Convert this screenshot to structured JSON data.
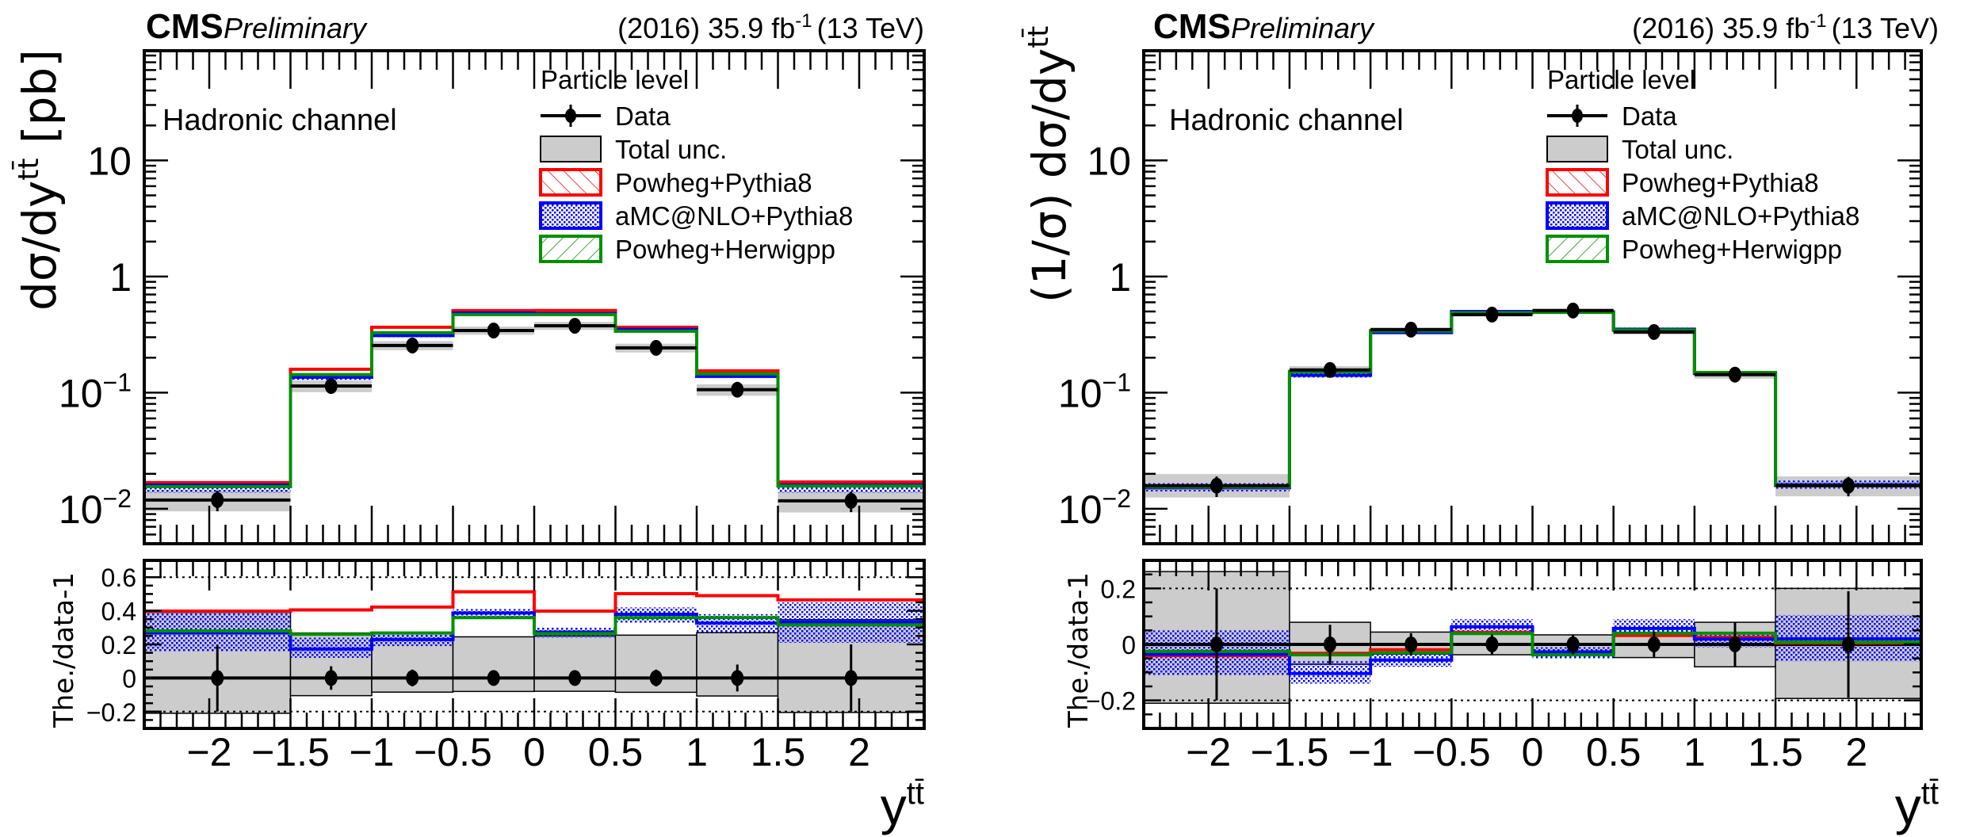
{
  "header": {
    "experiment": "CMS",
    "status": "Preliminary",
    "lumi": "(2016) 35.9 fb",
    "lumi_sup": "-1",
    "energy": "(13 TeV)"
  },
  "legend": {
    "title": "Particle level",
    "entries": [
      {
        "key": "data",
        "label": "Data",
        "color": "#000000"
      },
      {
        "key": "unc",
        "label": "Total unc.",
        "color": "#cccccc"
      },
      {
        "key": "pp8",
        "label": "Powheg+Pythia8",
        "color": "#ff0000"
      },
      {
        "key": "amc",
        "label": "aMC@NLO+Pythia8",
        "color": "#0000ff"
      },
      {
        "key": "phw",
        "label": "Powheg+Herwigpp",
        "color": "#009000"
      }
    ]
  },
  "chart_data": [
    {
      "type": "line",
      "title": "CMS Preliminary (2016) 35.9 fb-1 (13 TeV)",
      "annotation": "Hadronic channel",
      "ylabel": "dσ/dy",
      "ylabel_sup": "tt̄",
      "ylabel_unit": " [pb]",
      "xlabel": "y",
      "xlabel_sup": "tt̄",
      "yscale": "log",
      "ylim": [
        0.005,
        88
      ],
      "xlim": [
        -2.4,
        2.4
      ],
      "yticks": [
        {
          "v": 0.01,
          "base": "10",
          "exp": "−2"
        },
        {
          "v": 0.1,
          "base": "10",
          "exp": "−1"
        },
        {
          "v": 1,
          "base": "1",
          "exp": ""
        },
        {
          "v": 10,
          "base": "10",
          "exp": ""
        }
      ],
      "bin_edges": [
        -2.4,
        -1.5,
        -1.0,
        -0.5,
        0.0,
        0.5,
        1.0,
        1.5,
        2.4
      ],
      "data": [
        0.0119,
        0.114,
        0.255,
        0.343,
        0.377,
        0.243,
        0.106,
        0.0117
      ],
      "data_err_rel": [
        0.2,
        0.07,
        0.05,
        0.04,
        0.03,
        0.05,
        0.08,
        0.2
      ],
      "unc_low": [
        0.0095,
        0.101,
        0.232,
        0.315,
        0.347,
        0.222,
        0.094,
        0.0093
      ],
      "unc_high": [
        0.0145,
        0.127,
        0.278,
        0.371,
        0.407,
        0.264,
        0.118,
        0.0141
      ],
      "series": [
        {
          "name": "Powheg+Pythia8",
          "key": "pp8",
          "values": [
            0.0168,
            0.159,
            0.366,
            0.509,
            0.51,
            0.366,
            0.154,
            0.017
          ]
        },
        {
          "name": "aMC@NLO+Pythia8",
          "key": "amc",
          "values": [
            0.016,
            0.136,
            0.31,
            0.485,
            0.48,
            0.35,
            0.138,
            0.016
          ],
          "band_low": [
            0.0138,
            0.129,
            0.3,
            0.475,
            0.47,
            0.345,
            0.134,
            0.0138
          ],
          "band_high": [
            0.0163,
            0.138,
            0.316,
            0.492,
            0.486,
            0.355,
            0.141,
            0.0165
          ]
        },
        {
          "name": "Powheg+Herwigpp",
          "key": "phw",
          "values": [
            0.0155,
            0.143,
            0.328,
            0.47,
            0.47,
            0.338,
            0.145,
            0.0157
          ]
        }
      ],
      "ratio": {
        "ylabel": "The./data-1",
        "ylim": [
          -0.3,
          0.7
        ],
        "yticks": [
          -0.2,
          0,
          0.2,
          0.4,
          0.6
        ],
        "ytick_labels": [
          "−0.2",
          "0",
          "0.2",
          "0.4",
          "0.6"
        ],
        "dotted_lines": [
          -0.2,
          0.6
        ],
        "data_err": [
          0.2,
          0.07,
          0.05,
          0.04,
          0.03,
          0.05,
          0.08,
          0.2
        ],
        "unc_low": [
          -0.21,
          -0.105,
          -0.084,
          -0.08,
          -0.079,
          -0.085,
          -0.107,
          -0.205
        ],
        "unc_high": [
          0.39,
          0.268,
          0.268,
          0.245,
          0.25,
          0.255,
          0.27,
          0.347
        ],
        "series": [
          {
            "key": "pp8",
            "values": [
              0.398,
              0.405,
              0.422,
              0.513,
              0.398,
              0.502,
              0.49,
              0.465
            ]
          },
          {
            "key": "amc",
            "values": [
              0.268,
              0.172,
              0.229,
              0.387,
              0.273,
              0.379,
              0.327,
              0.333
            ],
            "band_low": [
              0.16,
              0.12,
              0.19,
              0.36,
              0.24,
              0.33,
              0.27,
              0.21
            ],
            "band_high": [
              0.39,
              0.24,
              0.26,
              0.41,
              0.3,
              0.42,
              0.38,
              0.45
            ]
          },
          {
            "key": "phw",
            "values": [
              0.28,
              0.26,
              0.268,
              0.359,
              0.264,
              0.359,
              0.359,
              0.316
            ]
          }
        ]
      },
      "xticks": [
        -2,
        -1.5,
        -1,
        -0.5,
        0,
        0.5,
        1,
        1.5,
        2
      ],
      "xtick_labels": [
        "−2",
        "−1.5",
        "−1",
        "−0.5",
        "0",
        "0.5",
        "1",
        "1.5",
        "2"
      ]
    },
    {
      "type": "line",
      "title": "CMS Preliminary (2016) 35.9 fb-1 (13 TeV)",
      "annotation": "Hadronic channel",
      "ylabel": "(1/σ) dσ/dy",
      "ylabel_sup": "tt̄",
      "ylabel_unit": "",
      "xlabel": "y",
      "xlabel_sup": "tt̄",
      "yscale": "log",
      "ylim": [
        0.005,
        88
      ],
      "xlim": [
        -2.4,
        2.4
      ],
      "yticks": [
        {
          "v": 0.01,
          "base": "10",
          "exp": "−2"
        },
        {
          "v": 0.1,
          "base": "10",
          "exp": "−1"
        },
        {
          "v": 1,
          "base": "1",
          "exp": ""
        },
        {
          "v": 10,
          "base": "10",
          "exp": ""
        }
      ],
      "bin_edges": [
        -2.4,
        -1.5,
        -1.0,
        -0.5,
        0.0,
        0.5,
        1.0,
        1.5,
        2.4
      ],
      "data": [
        0.0158,
        0.157,
        0.349,
        0.47,
        0.51,
        0.333,
        0.143,
        0.0158
      ],
      "data_err_rel": [
        0.2,
        0.07,
        0.04,
        0.035,
        0.035,
        0.045,
        0.08,
        0.19
      ],
      "unc_low": [
        0.0125,
        0.146,
        0.337,
        0.453,
        0.491,
        0.317,
        0.132,
        0.0128
      ],
      "unc_high": [
        0.0199,
        0.169,
        0.364,
        0.491,
        0.527,
        0.345,
        0.154,
        0.019
      ],
      "series": [
        {
          "name": "Powheg+Pythia8",
          "key": "pp8",
          "values": [
            0.0152,
            0.152,
            0.342,
            0.49,
            0.492,
            0.344,
            0.147,
            0.0159
          ]
        },
        {
          "name": "aMC@NLO+Pythia8",
          "key": "amc",
          "values": [
            0.0152,
            0.141,
            0.329,
            0.5,
            0.496,
            0.352,
            0.146,
            0.0161
          ],
          "band_low": [
            0.0141,
            0.135,
            0.321,
            0.489,
            0.485,
            0.347,
            0.142,
            0.0149
          ],
          "band_high": [
            0.0166,
            0.148,
            0.338,
            0.512,
            0.505,
            0.363,
            0.149,
            0.0175
          ]
        },
        {
          "name": "Powheg+Herwigpp",
          "key": "phw",
          "values": [
            0.0154,
            0.151,
            0.339,
            0.488,
            0.491,
            0.346,
            0.149,
            0.0159
          ]
        }
      ],
      "ratio": {
        "ylabel": "The./data-1",
        "ylim": [
          -0.3,
          0.3
        ],
        "yticks": [
          -0.2,
          0,
          0.2
        ],
        "ytick_labels": [
          "−0.2",
          "0",
          "0.2"
        ],
        "dotted_lines": [
          -0.2,
          0.2
        ],
        "data_err": [
          0.2,
          0.07,
          0.04,
          0.035,
          0.035,
          0.045,
          0.08,
          0.19
        ],
        "unc_low": [
          -0.21,
          -0.071,
          -0.035,
          -0.037,
          -0.037,
          -0.047,
          -0.08,
          -0.193
        ],
        "unc_high": [
          0.26,
          0.079,
          0.044,
          0.044,
          0.034,
          0.036,
          0.079,
          0.2
        ],
        "series": [
          {
            "key": "pp8",
            "values": [
              -0.04,
              -0.032,
              -0.019,
              0.043,
              -0.035,
              0.032,
              0.026,
              0.005
            ]
          },
          {
            "key": "amc",
            "values": [
              -0.035,
              -0.104,
              -0.056,
              0.063,
              -0.027,
              0.057,
              0.019,
              0.02
            ],
            "band_low": [
              -0.11,
              -0.14,
              -0.08,
              0.04,
              -0.05,
              0.04,
              -0.01,
              -0.06
            ],
            "band_high": [
              0.05,
              -0.06,
              -0.03,
              0.09,
              -0.01,
              0.09,
              0.04,
              0.105
            ]
          },
          {
            "key": "phw",
            "values": [
              -0.025,
              -0.037,
              -0.03,
              0.039,
              -0.037,
              0.04,
              0.04,
              0.008
            ]
          }
        ]
      },
      "xticks": [
        -2,
        -1.5,
        -1,
        -0.5,
        0,
        0.5,
        1,
        1.5,
        2
      ],
      "xtick_labels": [
        "−2",
        "−1.5",
        "−1",
        "−0.5",
        "0",
        "0.5",
        "1",
        "1.5",
        "2"
      ]
    }
  ]
}
